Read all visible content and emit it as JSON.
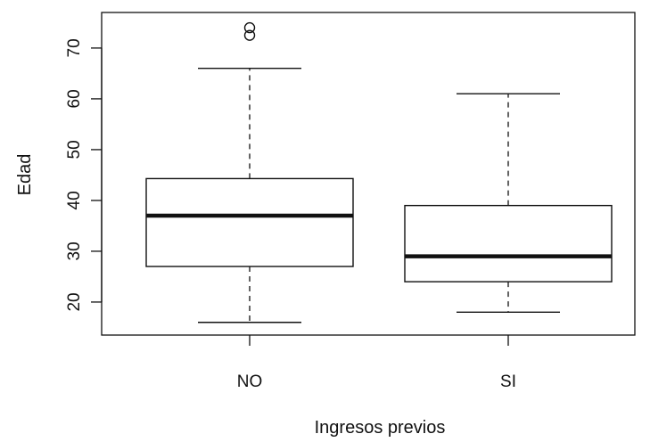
{
  "chart_data": {
    "type": "box",
    "title": "",
    "xlabel": "Ingresos previos",
    "ylabel": "Edad",
    "ylim": [
      13.5,
      77
    ],
    "yticks": [
      20,
      30,
      40,
      50,
      60,
      70
    ],
    "ytick_labels": [
      "20",
      "30",
      "40",
      "50",
      "60",
      "70"
    ],
    "categories": [
      "NO",
      "SI"
    ],
    "boxes": [
      {
        "category": "NO",
        "whisker_low": 16,
        "q1": 27,
        "median": 37,
        "q3": 44.3,
        "whisker_high": 66,
        "outliers": [
          72.5,
          74
        ]
      },
      {
        "category": "SI",
        "whisker_low": 18,
        "q1": 24,
        "median": 29,
        "q3": 39,
        "whisker_high": 61,
        "outliers": []
      }
    ],
    "grid": false,
    "colors": {
      "box_fill": "#ffffff",
      "stroke": "#111111"
    }
  }
}
